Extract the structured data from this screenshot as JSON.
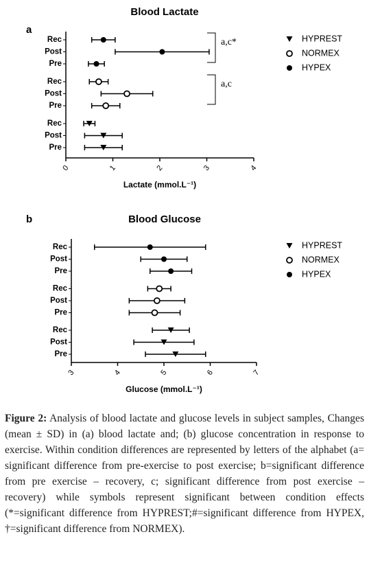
{
  "chart_data": [
    {
      "type": "dot",
      "panel": "a",
      "title": "Blood Lactate",
      "xlabel": "Lactate (mmol.L⁻¹)",
      "categories": [
        "Rec",
        "Post",
        "Pre"
      ],
      "xlim": [
        0,
        4
      ],
      "xticks": [
        0,
        1,
        2,
        3,
        4
      ],
      "series": [
        {
          "name": "HYPREST",
          "marker": "triangle",
          "color": "#000",
          "values": [
            0.5,
            0.8,
            0.8
          ],
          "errors": [
            0.12,
            0.4,
            0.4
          ]
        },
        {
          "name": "NORMEX",
          "marker": "open-circle",
          "color": "#000",
          "values": [
            0.7,
            1.3,
            0.85
          ],
          "errors": [
            0.2,
            0.55,
            0.3
          ],
          "annotation": "a,c"
        },
        {
          "name": "HYPEX",
          "marker": "circle",
          "color": "#000",
          "values": [
            0.8,
            2.05,
            0.65
          ],
          "errors": [
            0.25,
            1.0,
            0.17
          ],
          "annotation": "a,c*"
        }
      ]
    },
    {
      "type": "dot",
      "panel": "b",
      "title": "Blood Glucose",
      "xlabel": "Glucose (mmol.L⁻¹)",
      "categories": [
        "Rec",
        "Post",
        "Pre"
      ],
      "xlim": [
        3,
        7
      ],
      "xticks": [
        3,
        4,
        5,
        6,
        7
      ],
      "series": [
        {
          "name": "HYPREST",
          "marker": "triangle",
          "color": "#000",
          "values": [
            5.15,
            5.0,
            5.25
          ],
          "errors": [
            0.4,
            0.65,
            0.65
          ]
        },
        {
          "name": "NORMEX",
          "marker": "open-circle",
          "color": "#000",
          "values": [
            4.9,
            4.85,
            4.8
          ],
          "errors": [
            0.25,
            0.6,
            0.55
          ]
        },
        {
          "name": "HYPEX",
          "marker": "circle",
          "color": "#000",
          "values": [
            4.7,
            5.0,
            5.15
          ],
          "errors": [
            1.2,
            0.5,
            0.45
          ]
        }
      ]
    }
  ],
  "caption": {
    "label": "Figure 2:",
    "text": "Analysis of blood lactate and glucose levels in subject samples, Changes (mean ± SD) in (a) blood lactate and; (b) glucose concentration in response to exercise. Within condition differences are represented by letters of the alphabet (a= significant difference from pre-exercise to post exercise; b=significant difference from pre exercise – recovery, c; significant difference from post exercise – recovery) while symbols represent significant between condition effects (*=significant difference from HYPREST;#=significant difference from HYPEX, †=significant difference from NORMEX)."
  }
}
